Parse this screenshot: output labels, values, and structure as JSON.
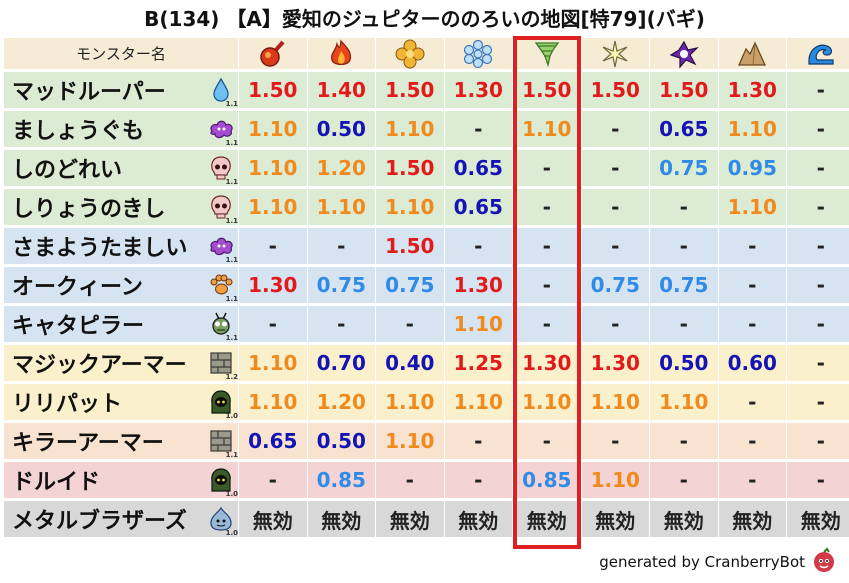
{
  "title": "B(134) 【A】愛知のジュピターののろいの地図[特79](バギ)",
  "header": {
    "name_label": "モンスター名"
  },
  "columns": [
    {
      "icon": "fire-ball-icon"
    },
    {
      "icon": "flame-icon"
    },
    {
      "icon": "explosion-icon"
    },
    {
      "icon": "ice-crystal-icon"
    },
    {
      "icon": "tornado-icon"
    },
    {
      "icon": "spark-icon"
    },
    {
      "icon": "dark-vortex-icon"
    },
    {
      "icon": "rock-icon"
    },
    {
      "icon": "wave-icon"
    }
  ],
  "colors": {
    "red": "#e11b1b",
    "orange": "#f08a1c",
    "navy": "#1414b4",
    "lightblue": "#2f8ae8",
    "dark": "#222222",
    "green_bg": "#dcebd3",
    "blue_bg": "#d6e3f1",
    "yellow_bg": "#fbf0cc",
    "pink_bg": "#f3d3d3",
    "gray_bg": "#d8d8d8",
    "peach_bg": "#f8e2d0"
  },
  "rows": [
    {
      "name": "マッドルーパー",
      "icon": "water-drop-icon",
      "level": "1.1",
      "bg": "#dcebd3",
      "values": [
        {
          "v": "1.50",
          "c": "red"
        },
        {
          "v": "1.40",
          "c": "red"
        },
        {
          "v": "1.50",
          "c": "red"
        },
        {
          "v": "1.30",
          "c": "red"
        },
        {
          "v": "1.50",
          "c": "red"
        },
        {
          "v": "1.50",
          "c": "red"
        },
        {
          "v": "1.50",
          "c": "red"
        },
        {
          "v": "1.30",
          "c": "red"
        },
        {
          "v": "-",
          "c": "dark"
        }
      ]
    },
    {
      "name": "ましょうぐも",
      "icon": "purple-cloud-icon",
      "level": "1.1",
      "bg": "#dcebd3",
      "values": [
        {
          "v": "1.10",
          "c": "orange"
        },
        {
          "v": "0.50",
          "c": "navy"
        },
        {
          "v": "1.10",
          "c": "orange"
        },
        {
          "v": "-",
          "c": "dark"
        },
        {
          "v": "1.10",
          "c": "orange"
        },
        {
          "v": "-",
          "c": "dark"
        },
        {
          "v": "0.65",
          "c": "navy"
        },
        {
          "v": "1.10",
          "c": "orange"
        },
        {
          "v": "-",
          "c": "dark"
        }
      ]
    },
    {
      "name": "しのどれい",
      "icon": "skull-icon",
      "level": "1.1",
      "bg": "#dcebd3",
      "values": [
        {
          "v": "1.10",
          "c": "orange"
        },
        {
          "v": "1.20",
          "c": "orange"
        },
        {
          "v": "1.50",
          "c": "red"
        },
        {
          "v": "0.65",
          "c": "navy"
        },
        {
          "v": "-",
          "c": "dark"
        },
        {
          "v": "-",
          "c": "dark"
        },
        {
          "v": "0.75",
          "c": "lightblue"
        },
        {
          "v": "0.95",
          "c": "lightblue"
        },
        {
          "v": "-",
          "c": "dark"
        }
      ]
    },
    {
      "name": "しりょうのきし",
      "icon": "skull-icon",
      "level": "1.1",
      "bg": "#dcebd3",
      "values": [
        {
          "v": "1.10",
          "c": "orange"
        },
        {
          "v": "1.10",
          "c": "orange"
        },
        {
          "v": "1.10",
          "c": "orange"
        },
        {
          "v": "0.65",
          "c": "navy"
        },
        {
          "v": "-",
          "c": "dark"
        },
        {
          "v": "-",
          "c": "dark"
        },
        {
          "v": "-",
          "c": "dark"
        },
        {
          "v": "1.10",
          "c": "orange"
        },
        {
          "v": "-",
          "c": "dark"
        }
      ]
    },
    {
      "name": "さまようたましい",
      "icon": "purple-cloud-icon",
      "level": "1.1",
      "bg": "#d6e3f1",
      "values": [
        {
          "v": "-",
          "c": "dark"
        },
        {
          "v": "-",
          "c": "dark"
        },
        {
          "v": "1.50",
          "c": "red"
        },
        {
          "v": "-",
          "c": "dark"
        },
        {
          "v": "-",
          "c": "dark"
        },
        {
          "v": "-",
          "c": "dark"
        },
        {
          "v": "-",
          "c": "dark"
        },
        {
          "v": "-",
          "c": "dark"
        },
        {
          "v": "-",
          "c": "dark"
        }
      ]
    },
    {
      "name": "オークィーン",
      "icon": "paw-icon",
      "level": "1.1",
      "bg": "#d6e3f1",
      "values": [
        {
          "v": "1.30",
          "c": "red"
        },
        {
          "v": "0.75",
          "c": "lightblue"
        },
        {
          "v": "0.75",
          "c": "lightblue"
        },
        {
          "v": "1.30",
          "c": "red"
        },
        {
          "v": "-",
          "c": "dark"
        },
        {
          "v": "0.75",
          "c": "lightblue"
        },
        {
          "v": "0.75",
          "c": "lightblue"
        },
        {
          "v": "-",
          "c": "dark"
        },
        {
          "v": "-",
          "c": "dark"
        }
      ]
    },
    {
      "name": "キャタピラー",
      "icon": "bug-icon",
      "level": "1.1",
      "bg": "#d6e3f1",
      "values": [
        {
          "v": "-",
          "c": "dark"
        },
        {
          "v": "-",
          "c": "dark"
        },
        {
          "v": "-",
          "c": "dark"
        },
        {
          "v": "1.10",
          "c": "orange"
        },
        {
          "v": "-",
          "c": "dark"
        },
        {
          "v": "-",
          "c": "dark"
        },
        {
          "v": "-",
          "c": "dark"
        },
        {
          "v": "-",
          "c": "dark"
        },
        {
          "v": "-",
          "c": "dark"
        }
      ]
    },
    {
      "name": "マジックアーマー",
      "icon": "brick-icon",
      "level": "1.2",
      "bg": "#fbf0cc",
      "values": [
        {
          "v": "1.10",
          "c": "orange"
        },
        {
          "v": "0.70",
          "c": "navy"
        },
        {
          "v": "0.40",
          "c": "navy"
        },
        {
          "v": "1.25",
          "c": "red"
        },
        {
          "v": "1.30",
          "c": "red"
        },
        {
          "v": "1.30",
          "c": "red"
        },
        {
          "v": "0.50",
          "c": "navy"
        },
        {
          "v": "0.60",
          "c": "navy"
        },
        {
          "v": "-",
          "c": "dark"
        }
      ]
    },
    {
      "name": "リリパット",
      "icon": "hood-icon",
      "level": "1.0",
      "bg": "#fbf0cc",
      "values": [
        {
          "v": "1.10",
          "c": "orange"
        },
        {
          "v": "1.20",
          "c": "orange"
        },
        {
          "v": "1.10",
          "c": "orange"
        },
        {
          "v": "1.10",
          "c": "orange"
        },
        {
          "v": "1.10",
          "c": "orange"
        },
        {
          "v": "1.10",
          "c": "orange"
        },
        {
          "v": "1.10",
          "c": "orange"
        },
        {
          "v": "-",
          "c": "dark"
        },
        {
          "v": "-",
          "c": "dark"
        }
      ]
    },
    {
      "name": "キラーアーマー",
      "icon": "brick-icon",
      "level": "1.1",
      "bg": "#f8e2d0",
      "values": [
        {
          "v": "0.65",
          "c": "navy"
        },
        {
          "v": "0.50",
          "c": "navy"
        },
        {
          "v": "1.10",
          "c": "orange"
        },
        {
          "v": "-",
          "c": "dark"
        },
        {
          "v": "-",
          "c": "dark"
        },
        {
          "v": "-",
          "c": "dark"
        },
        {
          "v": "-",
          "c": "dark"
        },
        {
          "v": "-",
          "c": "dark"
        },
        {
          "v": "-",
          "c": "dark"
        }
      ]
    },
    {
      "name": "ドルイド",
      "icon": "hood-icon",
      "level": "1.0",
      "bg": "#f3d3d3",
      "values": [
        {
          "v": "-",
          "c": "dark"
        },
        {
          "v": "0.85",
          "c": "lightblue"
        },
        {
          "v": "-",
          "c": "dark"
        },
        {
          "v": "-",
          "c": "dark"
        },
        {
          "v": "0.85",
          "c": "lightblue"
        },
        {
          "v": "1.10",
          "c": "orange"
        },
        {
          "v": "-",
          "c": "dark"
        },
        {
          "v": "-",
          "c": "dark"
        },
        {
          "v": "-",
          "c": "dark"
        }
      ]
    },
    {
      "name": "メタルブラザーズ",
      "icon": "metal-slime-icon",
      "level": "1.0",
      "bg": "#d8d8d8",
      "values": [
        {
          "v": "無効",
          "c": "dark"
        },
        {
          "v": "無効",
          "c": "dark"
        },
        {
          "v": "無効",
          "c": "dark"
        },
        {
          "v": "無効",
          "c": "dark"
        },
        {
          "v": "無効",
          "c": "dark"
        },
        {
          "v": "無効",
          "c": "dark"
        },
        {
          "v": "無効",
          "c": "dark"
        },
        {
          "v": "無効",
          "c": "dark"
        },
        {
          "v": "無効",
          "c": "dark"
        }
      ]
    }
  ],
  "footer": {
    "text": "generated by CranberryBot",
    "icon": "cranberry-bot-icon"
  }
}
